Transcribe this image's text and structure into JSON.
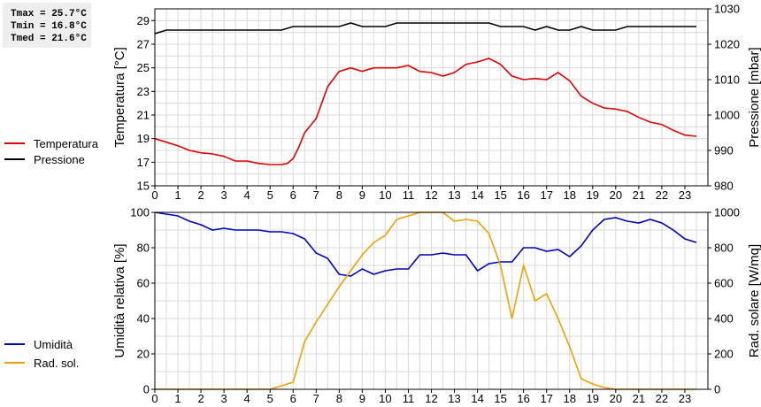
{
  "stats": {
    "tmax": "Tmax = 25.7°C",
    "tmin": "Tmin = 16.8°C",
    "tmed": "Tmed = 21.6°C"
  },
  "legend_top": [
    {
      "label": "Temperatura",
      "color": "#e00000"
    },
    {
      "label": "Pressione",
      "color": "#000000"
    }
  ],
  "legend_bottom": [
    {
      "label": "Umidità",
      "color": "#0000c0"
    },
    {
      "label": "Rad. sol.",
      "color": "#f0a000"
    }
  ],
  "chart_data": [
    {
      "type": "line",
      "xlabel": "",
      "xlim": [
        0,
        24
      ],
      "x_ticks": [
        "0",
        "1",
        "2",
        "3",
        "4",
        "5",
        "6",
        "7",
        "8",
        "9",
        "10",
        "11",
        "12",
        "13",
        "14",
        "15",
        "16",
        "17",
        "18",
        "19",
        "20",
        "21",
        "22",
        "23"
      ],
      "grid": true,
      "y_left": {
        "label": "Temperatura [°C]",
        "ylim": [
          15,
          30
        ],
        "ticks": [
          "15",
          "17",
          "19",
          "21",
          "23",
          "25",
          "27",
          "29"
        ]
      },
      "y_right": {
        "label": "Pressione [mbar]",
        "ylim": [
          980,
          1030
        ],
        "ticks": [
          "980",
          "990",
          "1000",
          "1010",
          "1020",
          "1030"
        ]
      },
      "series": [
        {
          "name": "Temperatura",
          "axis": "left",
          "color": "#e00000",
          "x": [
            0,
            0.5,
            1,
            1.5,
            2,
            2.5,
            3,
            3.5,
            4,
            4.5,
            5,
            5.5,
            5.75,
            6,
            6.25,
            6.5,
            7,
            7.5,
            8,
            8.5,
            9,
            9.5,
            10,
            10.5,
            11,
            11.5,
            12,
            12.5,
            13,
            13.5,
            14,
            14.5,
            15,
            15.5,
            16,
            16.5,
            17,
            17.5,
            18,
            18.5,
            19,
            19.5,
            20,
            20.5,
            21,
            21.5,
            22,
            22.5,
            23,
            23.5
          ],
          "values": [
            19.0,
            18.7,
            18.4,
            18.0,
            17.8,
            17.7,
            17.5,
            17.1,
            17.1,
            16.9,
            16.8,
            16.8,
            16.9,
            17.3,
            18.3,
            19.5,
            20.7,
            23.4,
            24.7,
            25.0,
            24.7,
            25.0,
            25.0,
            25.0,
            25.2,
            24.7,
            24.6,
            24.3,
            24.6,
            25.3,
            25.5,
            25.8,
            25.3,
            24.3,
            24.0,
            24.1,
            24.0,
            24.6,
            23.9,
            22.6,
            22.0,
            21.6,
            21.5,
            21.3,
            20.8,
            20.4,
            20.2,
            19.7,
            19.3,
            19.2
          ]
        },
        {
          "name": "Pressione",
          "axis": "right",
          "color": "#000000",
          "x": [
            0,
            0.5,
            1,
            1.5,
            2,
            2.5,
            3,
            3.5,
            4,
            4.5,
            5,
            5.5,
            6,
            6.5,
            7,
            7.5,
            8,
            8.5,
            9,
            9.5,
            10,
            10.5,
            11,
            11.5,
            12,
            12.5,
            13,
            13.5,
            14,
            14.5,
            15,
            15.5,
            16,
            16.5,
            17,
            17.5,
            18,
            18.5,
            19,
            19.5,
            20,
            20.5,
            21,
            21.5,
            22,
            22.5,
            23,
            23.5
          ],
          "values": [
            1023,
            1024,
            1024,
            1024,
            1024,
            1024,
            1024,
            1024,
            1024,
            1024,
            1024,
            1024,
            1025,
            1025,
            1025,
            1025,
            1025,
            1026,
            1025,
            1025,
            1025,
            1026,
            1026,
            1026,
            1026,
            1026,
            1026,
            1026,
            1026,
            1026,
            1025,
            1025,
            1025,
            1024,
            1025,
            1024,
            1024,
            1025,
            1024,
            1024,
            1024,
            1025,
            1025,
            1025,
            1025,
            1025,
            1025,
            1025
          ]
        }
      ]
    },
    {
      "type": "line",
      "xlabel": "",
      "xlim": [
        0,
        24
      ],
      "x_ticks": [
        "0",
        "1",
        "2",
        "3",
        "4",
        "5",
        "6",
        "7",
        "8",
        "9",
        "10",
        "11",
        "12",
        "13",
        "14",
        "15",
        "16",
        "17",
        "18",
        "19",
        "20",
        "21",
        "22",
        "23"
      ],
      "grid": true,
      "y_left": {
        "label": "Umidità relativa [%]",
        "ylim": [
          0,
          100
        ],
        "ticks": [
          "0",
          "20",
          "40",
          "60",
          "80",
          "100"
        ]
      },
      "y_right": {
        "label": "Rad. solare [W/mq]",
        "ylim": [
          0,
          1000
        ],
        "ticks": [
          "0",
          "200",
          "400",
          "600",
          "800",
          "1000"
        ]
      },
      "series": [
        {
          "name": "Umidità",
          "axis": "left",
          "color": "#0000c0",
          "x": [
            0,
            0.5,
            1,
            1.5,
            2,
            2.5,
            3,
            3.5,
            4,
            4.5,
            5,
            5.5,
            6,
            6.5,
            7,
            7.5,
            8,
            8.5,
            9,
            9.5,
            10,
            10.5,
            11,
            11.5,
            12,
            12.5,
            13,
            13.5,
            14,
            14.5,
            15,
            15.5,
            16,
            16.5,
            17,
            17.5,
            18,
            18.5,
            19,
            19.5,
            20,
            20.5,
            21,
            21.5,
            22,
            22.5,
            23,
            23.5
          ],
          "values": [
            100,
            99,
            98,
            95,
            93,
            90,
            91,
            90,
            90,
            90,
            89,
            89,
            88,
            85,
            77,
            74,
            65,
            64,
            68,
            65,
            67,
            68,
            68,
            76,
            76,
            77,
            76,
            76,
            67,
            71,
            72,
            72,
            80,
            80,
            78,
            79,
            75,
            81,
            90,
            96,
            97,
            95,
            94,
            96,
            94,
            90,
            85,
            83
          ]
        },
        {
          "name": "Rad. sol.",
          "axis": "right",
          "color": "#f0a000",
          "x": [
            0,
            0.5,
            1,
            1.5,
            2,
            2.5,
            3,
            3.5,
            4,
            4.5,
            5,
            5.5,
            6,
            6.5,
            7,
            7.5,
            8,
            8.5,
            9,
            9.5,
            10,
            10.5,
            11,
            11.5,
            12,
            12.5,
            13,
            13.5,
            14,
            14.5,
            15,
            15.5,
            16,
            16.5,
            17,
            17.5,
            18,
            18.5,
            19,
            19.5,
            20,
            20.5,
            21,
            21.5,
            22,
            22.5,
            23,
            23.5
          ],
          "values": [
            0,
            0,
            0,
            0,
            0,
            0,
            0,
            0,
            0,
            0,
            0,
            20,
            40,
            270,
            380,
            480,
            580,
            670,
            760,
            830,
            870,
            960,
            980,
            1020,
            1040,
            1020,
            950,
            960,
            950,
            880,
            700,
            400,
            700,
            500,
            540,
            400,
            240,
            60,
            30,
            10,
            0,
            0,
            0,
            0,
            0,
            0,
            0,
            0
          ]
        }
      ]
    }
  ]
}
